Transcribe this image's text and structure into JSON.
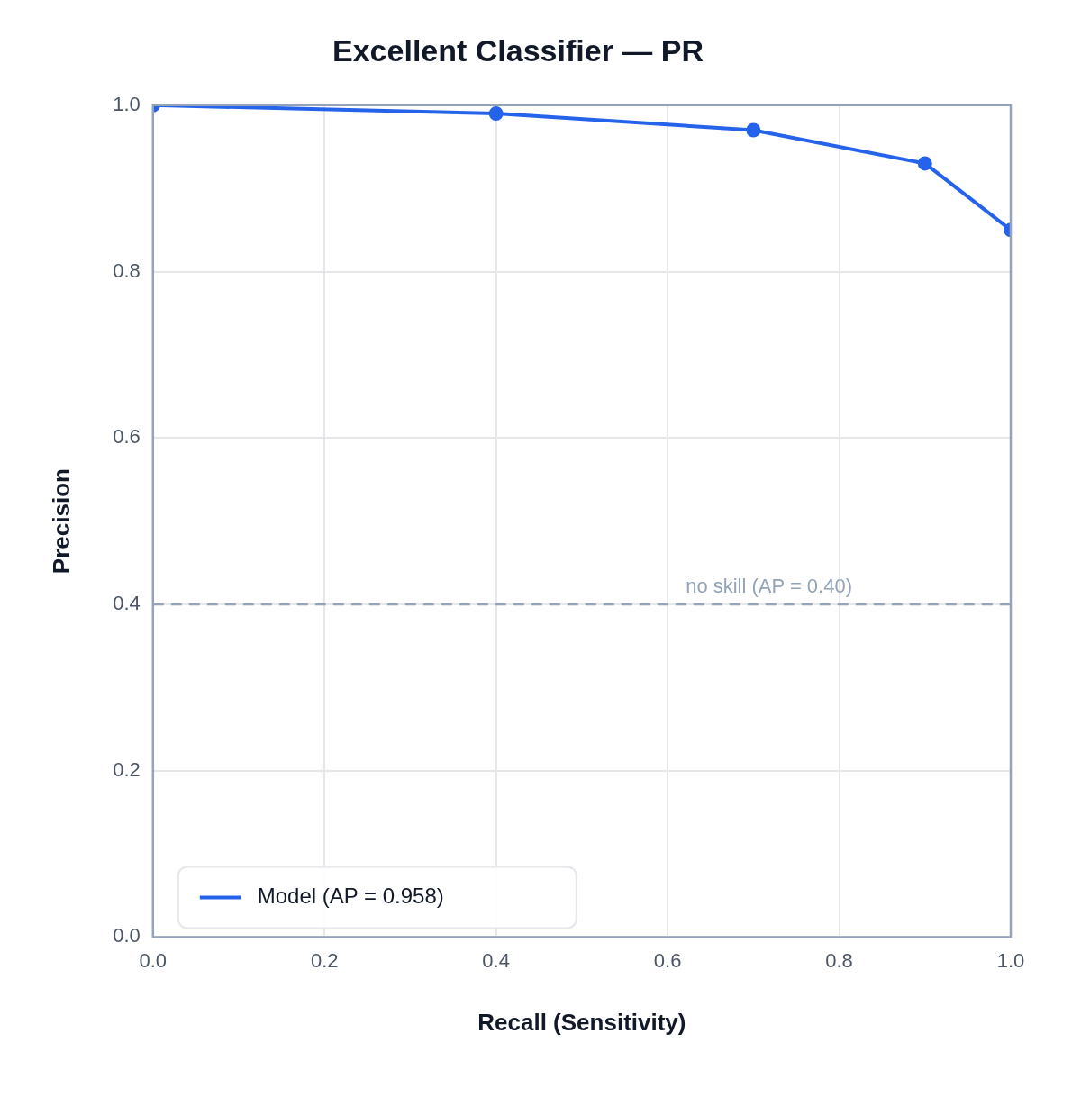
{
  "chart_data": {
    "type": "line",
    "title": "Excellent Classifier — PR",
    "xlabel": "Recall (Sensitivity)",
    "ylabel": "Precision",
    "x": [
      0,
      0.4,
      0.7,
      0.9,
      1.0
    ],
    "series": [
      {
        "name": "Model (AP = 0.958)",
        "color": "#2563eb",
        "values": [
          1.0,
          0.99,
          0.97,
          0.93,
          0.85
        ]
      }
    ],
    "xlim": [
      0,
      1
    ],
    "xticks": [
      {
        "value": 0,
        "label": "0.0"
      },
      {
        "value": 0.2,
        "label": "0.2"
      },
      {
        "value": 0.4,
        "label": "0.4"
      },
      {
        "value": 0.6,
        "label": "0.6"
      },
      {
        "value": 0.8,
        "label": "0.8"
      },
      {
        "value": 1,
        "label": "1.0"
      }
    ],
    "ylim": [
      0,
      1
    ],
    "yticks": [
      {
        "value": 0,
        "label": "0.0"
      },
      {
        "value": 0.2,
        "label": "0.2"
      },
      {
        "value": 0.4,
        "label": "0.4"
      },
      {
        "value": 0.6,
        "label": "0.6"
      },
      {
        "value": 0.8,
        "label": "0.8"
      },
      {
        "value": 1,
        "label": "1.0"
      }
    ],
    "ref_lines": [
      {
        "axis": "y",
        "value": 0.4,
        "label": "no skill (AP = 0.40)",
        "color": "#94a3b8",
        "line_style": "dashed"
      }
    ],
    "grid": true,
    "legend": "bottom left",
    "marker": "circle",
    "line_style": "solid"
  }
}
